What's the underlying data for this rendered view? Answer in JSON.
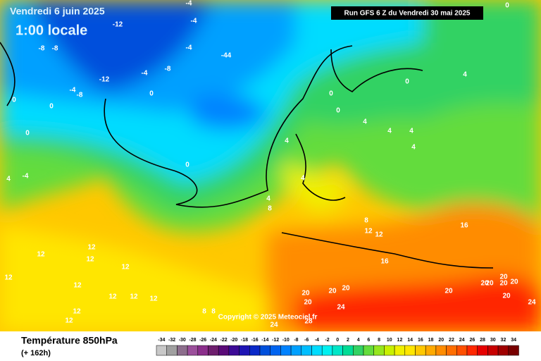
{
  "header": {
    "date": "Vendredi 6 juin 2025",
    "time": "1:00 locale",
    "run": "Run GFS 6 Z du Vendredi 30 mai 2025",
    "copyright": "Copyright © 2025 Meteociel.fr"
  },
  "footer": {
    "title": "Température 850hPa",
    "lead": "(+ 162h)"
  },
  "scale": {
    "values": [
      -34,
      -32,
      -30,
      -28,
      -26,
      -24,
      -22,
      -20,
      -18,
      -16,
      -14,
      -12,
      -10,
      -8,
      -6,
      -4,
      -2,
      0,
      2,
      4,
      6,
      8,
      10,
      12,
      14,
      16,
      18,
      20,
      22,
      24,
      26,
      28,
      30,
      32,
      34
    ],
    "colors": [
      "#c8c8c8",
      "#a0a0a0",
      "#8c6e8c",
      "#9b4f9b",
      "#8b2e8b",
      "#6e1e6e",
      "#5a0a78",
      "#3c0a96",
      "#1e14b4",
      "#0a28c8",
      "#0050dc",
      "#0064f0",
      "#0082ff",
      "#00a0ff",
      "#00beff",
      "#00dcff",
      "#00f0f0",
      "#00e6c8",
      "#00dc96",
      "#32d264",
      "#64dc3c",
      "#96e61e",
      "#c8f000",
      "#f0f000",
      "#ffe600",
      "#ffc800",
      "#ffaa00",
      "#ff8c00",
      "#ff6e00",
      "#ff5000",
      "#ff2800",
      "#e60000",
      "#c80000",
      "#a00000",
      "#780000"
    ]
  },
  "contour_labels": [
    -12,
    -4,
    -4,
    -4,
    -44,
    -8,
    -8,
    -8,
    -4,
    -12,
    -4,
    -8,
    0,
    0,
    0,
    0,
    0,
    -4,
    4,
    0,
    0,
    4,
    4,
    4,
    4,
    4,
    4,
    4,
    8,
    4,
    0,
    12,
    12,
    12,
    12,
    12,
    12,
    12,
    12,
    12,
    12,
    12,
    8,
    12,
    12,
    16,
    16,
    20,
    20,
    20,
    20,
    20,
    20,
    20,
    20,
    20,
    20,
    20,
    24,
    24,
    24,
    28,
    8,
    8,
    0
  ]
}
